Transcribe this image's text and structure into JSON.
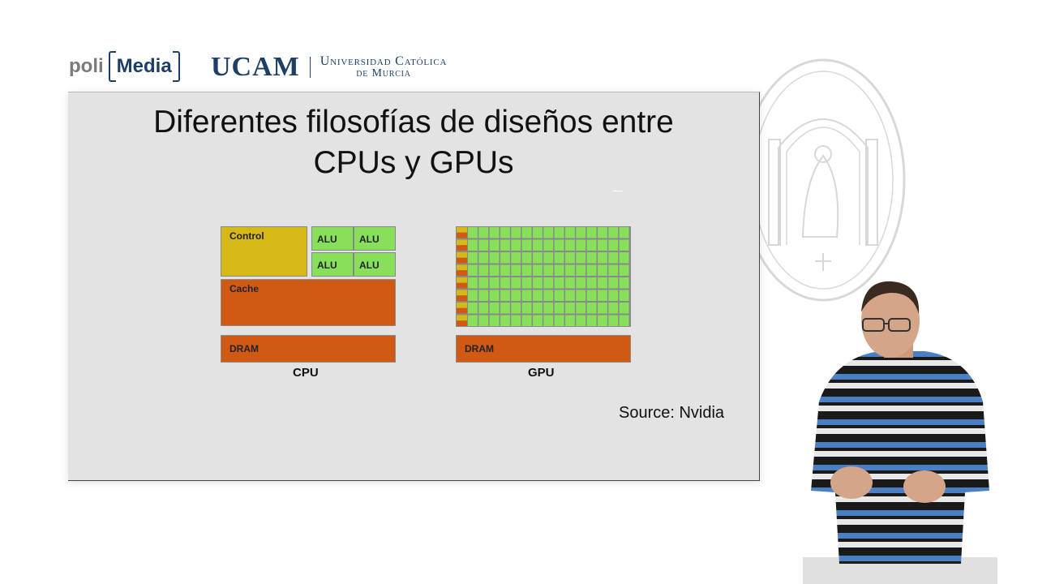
{
  "header": {
    "polimedia_prefix": "poli",
    "polimedia_name": "Media",
    "ucam_short": "UCAM",
    "ucam_line1": "Universidad Católica",
    "ucam_line2": "de Murcia"
  },
  "slide": {
    "title_line1": "Diferentes filosofías de diseños entre",
    "title_line2": "CPUs y GPUs",
    "source": "Source: Nvidia",
    "cpu": {
      "control_label": "Control",
      "alu_label": "ALU",
      "cache_label": "Cache",
      "dram_label": "DRAM",
      "caption": "CPU"
    },
    "gpu": {
      "dram_label": "DRAM",
      "caption": "GPU"
    }
  },
  "colors": {
    "control": "#d6b817",
    "cache": "#d05a14",
    "alu": "#88e05a",
    "brand": "#1d3f66"
  }
}
